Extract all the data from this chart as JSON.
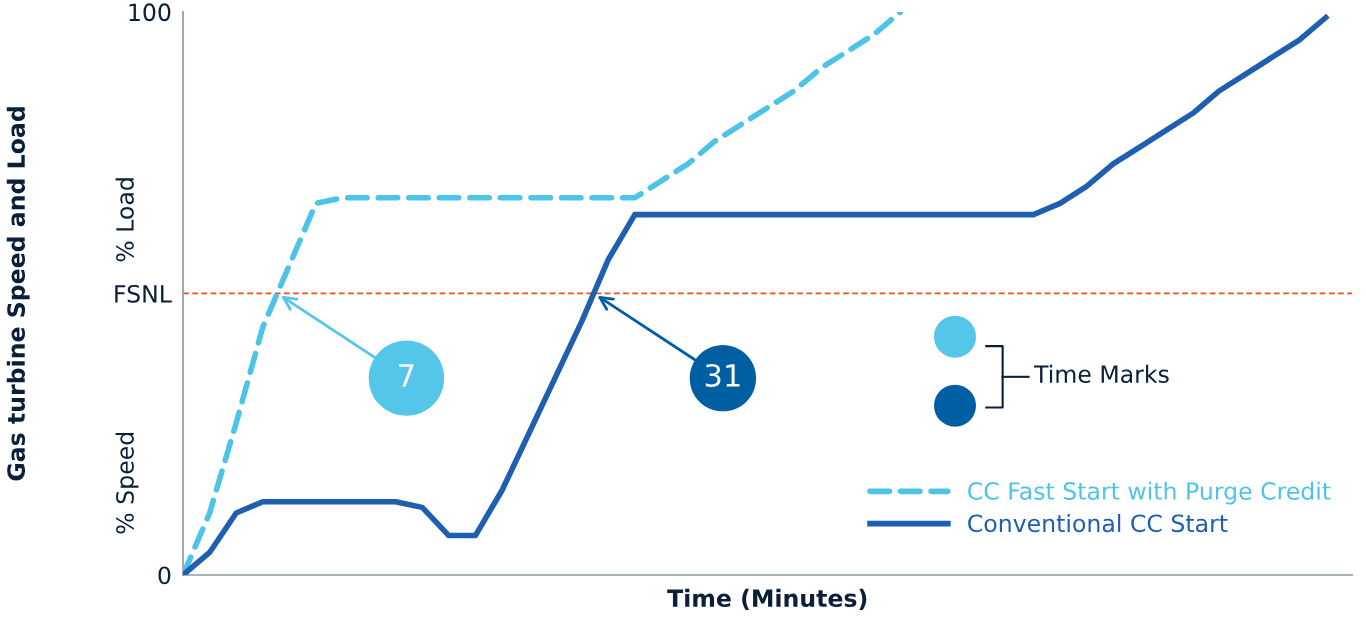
{
  "chart_data": {
    "type": "line",
    "xlabel": "Time (Minutes)",
    "ylabel": "Gas turbine Speed and Load",
    "categories": [
      null,
      null,
      null,
      null,
      null,
      null,
      null,
      null,
      null,
      null,
      null,
      null,
      null,
      null,
      null,
      null,
      null,
      null,
      null,
      null,
      null,
      null,
      null,
      null,
      null,
      null,
      null,
      null,
      null,
      null,
      null,
      null,
      null,
      null,
      null,
      null,
      null,
      null,
      null,
      null,
      null,
      null,
      null,
      null,
      null
    ],
    "series": [
      {
        "name": "CC Fast Start with Purge Credit",
        "color": "#4ec3e8",
        "line_style": "dashed",
        "values": [
          0,
          11,
          27,
          44,
          55,
          66,
          67,
          67,
          67,
          67,
          67,
          67,
          67,
          67,
          67,
          67,
          67,
          67,
          70,
          73,
          77,
          80,
          83,
          86,
          90,
          93,
          96,
          100,
          null,
          null,
          null,
          null,
          null,
          null,
          null,
          null,
          null,
          null,
          null,
          null,
          null,
          null,
          null,
          null,
          null
        ]
      },
      {
        "name": "Conventional CC Start",
        "color": "#1e5fb0",
        "line_style": "solid",
        "values": [
          0,
          4,
          11,
          13,
          13,
          13,
          13,
          13,
          13,
          12,
          7,
          7,
          15,
          25,
          35,
          45,
          56,
          64,
          64,
          64,
          64,
          64,
          64,
          64,
          64,
          64,
          64,
          64,
          64,
          64,
          64,
          64,
          64,
          66,
          69,
          73,
          76,
          79,
          82,
          86,
          89,
          92,
          95,
          99,
          null
        ]
      }
    ],
    "ylim": [
      0,
      100
    ],
    "yticks": [
      0,
      {
        "value": 50,
        "label": "FSNL"
      },
      100
    ],
    "tick_labels": "y",
    "ref_lines": [
      {
        "axis": "y",
        "value": 50,
        "color": "#f04e23",
        "line_style": "dashed"
      }
    ],
    "annotations": [
      {
        "text": "7",
        "y": 50
      },
      {
        "text": "31",
        "y": 50
      },
      "% Load",
      "% Speed",
      "Time Marks"
    ],
    "grid": false,
    "legend": "bottom right",
    "marker": "none"
  }
}
